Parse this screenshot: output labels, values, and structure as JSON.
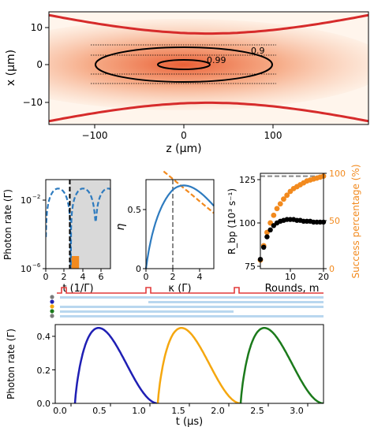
{
  "chart_data": [
    {
      "type": "heatmap",
      "xlabel": "z (μm)",
      "ylabel": "x (μm)",
      "xlim": [
        -180,
        180
      ],
      "ylim": [
        -14,
        14
      ],
      "xticks": [
        -100,
        0,
        100
      ],
      "yticks": [
        -10,
        0,
        10
      ],
      "tick_labels_x": [
        "−100",
        "0",
        "100"
      ],
      "tick_labels_y": [
        "−10",
        "0",
        "10"
      ],
      "contour_labels": [
        "0.99",
        "0.9"
      ],
      "colors": {
        "field": "#e8572c",
        "boundary": "#d62b2b"
      }
    },
    {
      "type": "line",
      "xlabel": "t (1/Γ)",
      "ylabel": "Photon rate (Γ)",
      "xlim": [
        0,
        7
      ],
      "ylim_log": [
        1e-06,
        1
      ],
      "scale": "log",
      "xticks": [
        0,
        2,
        4,
        6
      ],
      "tick_labels_x": [
        "0",
        "2",
        "4",
        "6"
      ],
      "tick_labels_y": [
        "10",
        "10",
        "10"
      ],
      "tick_exponents_y": [
        "−6",
        "−2",
        ""
      ],
      "marker_x": 2.6,
      "colors": {
        "dashed": "#2e7bbf",
        "filled": "#f28a1e",
        "shade": "#d9d9d9"
      }
    },
    {
      "type": "line",
      "xlabel": "κ (Γ)",
      "ylabel": "η",
      "xlim": [
        0,
        5
      ],
      "ylim": [
        0,
        0.75
      ],
      "xticks": [
        0,
        2,
        4
      ],
      "yticks": [
        0,
        0.5
      ],
      "tick_labels_x": [
        "0",
        "2",
        "4"
      ],
      "tick_labels_y": [
        "0",
        "0.5"
      ],
      "marker_x": 2,
      "colors": {
        "solid": "#2e7bbf",
        "dashed": "#f28a1e",
        "marker": "#888888"
      }
    },
    {
      "type": "scatter",
      "xlabel": "Rounds, m",
      "ylabel_left": "R_bp (10³ s⁻¹)",
      "ylabel_right": "Success percentage (%)",
      "xlim": [
        1,
        20
      ],
      "ylim_left": [
        75,
        130
      ],
      "ylim_right": [
        0,
        100
      ],
      "xticks": [
        10,
        20
      ],
      "yticks_left": [
        75,
        100,
        125
      ],
      "yticks_right": [
        0,
        50,
        100
      ],
      "tick_labels_x": [
        "10",
        "20"
      ],
      "tick_labels_left": [
        "75",
        "100",
        "125"
      ],
      "tick_labels_right": [
        "0",
        "50",
        "100"
      ],
      "limit_value": 127,
      "series": [
        {
          "name": "R_bp",
          "x": [
            1,
            2,
            3,
            4,
            5,
            6,
            7,
            8,
            9,
            10,
            11,
            12,
            13,
            14,
            15,
            16,
            17,
            18,
            19,
            20
          ],
          "values": [
            79,
            86,
            92,
            96,
            98.5,
            100,
            101,
            101.5,
            102,
            102,
            102,
            101.5,
            101.5,
            101,
            101,
            101,
            100.5,
            100.5,
            100.5,
            100.5
          ]
        },
        {
          "name": "Success",
          "x": [
            1,
            2,
            3,
            4,
            5,
            6,
            7,
            8,
            9,
            10,
            11,
            12,
            13,
            14,
            15,
            16,
            17,
            18,
            19,
            20
          ],
          "values": [
            9,
            24,
            38,
            48,
            56,
            63,
            68,
            73,
            77,
            81,
            84,
            86,
            88,
            90,
            92,
            93,
            94,
            95,
            96,
            97
          ]
        }
      ],
      "colors": {
        "left": "#000000",
        "right": "#f28a1e",
        "limit": "#888888"
      }
    },
    {
      "type": "line",
      "xlabel": "t (μs)",
      "ylabel": "Photon rate (Γ)",
      "xlim": [
        -0.2,
        3.2
      ],
      "ylim": [
        0,
        0.47
      ],
      "xticks": [
        0,
        0.5,
        1.0,
        1.5,
        2.0,
        2.5,
        3.0
      ],
      "yticks": [
        0,
        0.2,
        0.4
      ],
      "tick_labels_x": [
        "0.0",
        "0.5",
        "1.0",
        "1.5",
        "2.0",
        "2.5",
        "3.0"
      ],
      "tick_labels_y": [
        "0.0",
        "0.2",
        "0.4"
      ],
      "series": [
        {
          "name": "pulse-1",
          "start": 0.05,
          "end": 1.1,
          "peak": 0.45,
          "peak_t": 0.35,
          "color": "#1f1fb4"
        },
        {
          "name": "pulse-2",
          "start": 1.1,
          "end": 2.15,
          "peak": 0.45,
          "peak_t": 1.4,
          "color": "#f5a70f"
        },
        {
          "name": "pulse-3",
          "start": 2.15,
          "end": 3.2,
          "peak": 0.45,
          "peak_t": 2.45,
          "color": "#1b7a1b"
        }
      ],
      "timeline_colors": {
        "trigger": "#e23a3a",
        "bars": "#b9d7ef",
        "dots": [
          "#7a7a7a",
          "#1f1fb4",
          "#f5a70f",
          "#1b7a1b",
          "#7a7a7a"
        ]
      }
    }
  ]
}
